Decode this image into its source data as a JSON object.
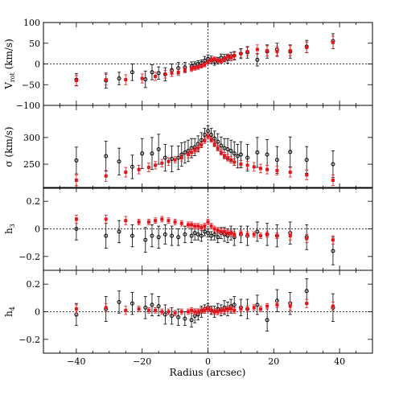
{
  "colors": {
    "black_series": "#000000",
    "red_series": "#e8141c",
    "frame": "#000000"
  },
  "chart_data": {
    "type": "scatter",
    "xlabel": "Radius (arcsec)",
    "xlim": [
      -50,
      50
    ],
    "xticks": [
      -40,
      -20,
      0,
      20,
      40
    ],
    "xtick_labels": [
      "−40",
      "−20",
      "0",
      "20",
      "40"
    ],
    "grid": false,
    "legend": "none",
    "panels": [
      {
        "ylabel": "V_rot (km/s)",
        "ylabel_main": "V",
        "ylabel_sub": "rot",
        "ylabel_rest": " (km/s)",
        "ylim": [
          -100,
          100
        ],
        "yticks": [
          -100,
          -50,
          0,
          50,
          100
        ],
        "ytick_labels": [
          "−100",
          "−50",
          "0",
          "50",
          "100"
        ],
        "zero_line": true,
        "series": [
          {
            "color": "black",
            "marker": "open-circle",
            "x": [
              -40,
              -31,
              -27,
              -23,
              -19,
              -17,
              -15,
              -13,
              -11,
              -9,
              -7,
              -5,
              -4,
              -3,
              -2,
              -1,
              0,
              1,
              2,
              3,
              4,
              5,
              6,
              7,
              8,
              10,
              12,
              15,
              18,
              21,
              25,
              30,
              38
            ],
            "y": [
              -38,
              -40,
              -35,
              -20,
              -37,
              -20,
              -22,
              -25,
              -15,
              -10,
              -8,
              -5,
              -3,
              0,
              2,
              8,
              12,
              10,
              5,
              8,
              15,
              14,
              12,
              18,
              20,
              25,
              28,
              10,
              30,
              35,
              30,
              42,
              55
            ],
            "err": [
              15,
              18,
              15,
              20,
              20,
              18,
              15,
              16,
              15,
              14,
              12,
              10,
              8,
              8,
              8,
              10,
              10,
              9,
              8,
              8,
              9,
              9,
              10,
              10,
              10,
              12,
              14,
              15,
              16,
              15,
              16,
              15,
              18
            ]
          },
          {
            "color": "red",
            "marker": "filled-square",
            "x": [
              -40,
              -31,
              -25,
              -20,
              -16,
              -13,
              -11,
              -9,
              -7,
              -5,
              -4,
              -3,
              -2,
              -1,
              0,
              1,
              2,
              3,
              4,
              5,
              6,
              7,
              8,
              10,
              12,
              15,
              18,
              21,
              25,
              30,
              38
            ],
            "y": [
              -40,
              -38,
              -38,
              -35,
              -30,
              -25,
              -22,
              -20,
              -15,
              -12,
              -10,
              -8,
              -5,
              -2,
              5,
              10,
              12,
              8,
              7,
              12,
              18,
              15,
              20,
              25,
              30,
              35,
              32,
              30,
              32,
              40,
              52
            ],
            "err": [
              12,
              13,
              12,
              11,
              10,
              9,
              8,
              7,
              6,
              6,
              5,
              5,
              5,
              5,
              5,
              5,
              5,
              5,
              5,
              5,
              6,
              7,
              8,
              9,
              10,
              11,
              12,
              12,
              12,
              13,
              15
            ]
          }
        ]
      },
      {
        "ylabel": "σ (km/s)",
        "ylabel_main": "σ (km/s)",
        "ylabel_sub": "",
        "ylabel_rest": "",
        "ylim": [
          205,
          360
        ],
        "yticks": [
          250,
          300
        ],
        "ytick_labels": [
          "250",
          "300"
        ],
        "zero_line": false,
        "series": [
          {
            "color": "black",
            "marker": "open-circle",
            "x": [
              -40,
              -31,
              -27,
              -23,
              -20,
              -17,
              -15,
              -13,
              -11,
              -9,
              -8,
              -7,
              -6,
              -5,
              -4,
              -3,
              -2,
              -1,
              0,
              1,
              2,
              3,
              4,
              5,
              6,
              7,
              8,
              9,
              10,
              12,
              15,
              18,
              21,
              25,
              30,
              38
            ],
            "y": [
              257,
              265,
              255,
              245,
              270,
              270,
              278,
              262,
              260,
              262,
              268,
              272,
              275,
              280,
              282,
              288,
              295,
              305,
              312,
              305,
              298,
              292,
              285,
              280,
              278,
              275,
              270,
              265,
              268,
              262,
              272,
              268,
              258,
              273,
              258,
              250
            ],
            "err": [
              25,
              28,
              25,
              22,
              28,
              30,
              28,
              25,
              24,
              22,
              22,
              20,
              20,
              18,
              16,
              15,
              14,
              12,
              10,
              12,
              14,
              15,
              16,
              18,
              20,
              20,
              22,
              22,
              24,
              25,
              28,
              28,
              25,
              28,
              25,
              25
            ]
          },
          {
            "color": "red",
            "marker": "filled-square",
            "x": [
              -40,
              -31,
              -25,
              -21,
              -18,
              -16,
              -14,
              -12,
              -10,
              -8,
              -6,
              -5,
              -4,
              -3,
              -2,
              -1,
              0,
              1,
              2,
              3,
              4,
              5,
              6,
              7,
              8,
              10,
              12,
              14,
              16,
              18,
              21,
              25,
              30,
              38
            ],
            "y": [
              220,
              228,
              235,
              240,
              244,
              248,
              252,
              255,
              258,
              262,
              268,
              272,
              276,
              280,
              286,
              294,
              302,
              296,
              288,
              280,
              272,
              266,
              262,
              258,
              254,
              250,
              248,
              245,
              242,
              240,
              238,
              235,
              230,
              220
            ],
            "err": [
              10,
              10,
              9,
              8,
              8,
              7,
              7,
              7,
              6,
              6,
              6,
              6,
              5,
              5,
              5,
              5,
              5,
              5,
              5,
              5,
              5,
              6,
              6,
              6,
              6,
              7,
              7,
              8,
              8,
              8,
              8,
              9,
              9,
              10
            ]
          }
        ]
      },
      {
        "ylabel": "h_3",
        "ylabel_main": "h",
        "ylabel_sub": "3",
        "ylabel_rest": "",
        "ylim": [
          -0.3,
          0.3
        ],
        "yticks": [
          -0.2,
          0,
          0.2
        ],
        "ytick_labels": [
          "−0.2",
          "0",
          "0.2"
        ],
        "zero_line": true,
        "series": [
          {
            "color": "black",
            "marker": "open-circle",
            "x": [
              -40,
              -31,
              -27,
              -23,
              -19,
              -17,
              -15,
              -13,
              -11,
              -9,
              -7,
              -5,
              -4,
              -3,
              -2,
              -1,
              0,
              1,
              2,
              3,
              4,
              5,
              6,
              7,
              8,
              10,
              12,
              15,
              18,
              21,
              25,
              30,
              38
            ],
            "y": [
              0,
              -0.05,
              -0.02,
              -0.05,
              -0.08,
              -0.05,
              -0.06,
              -0.04,
              -0.05,
              -0.06,
              -0.04,
              -0.05,
              -0.03,
              -0.04,
              -0.05,
              -0.02,
              -0.03,
              -0.05,
              -0.04,
              -0.06,
              -0.03,
              -0.04,
              -0.05,
              -0.03,
              -0.06,
              -0.04,
              -0.05,
              -0.02,
              -0.04,
              -0.05,
              -0.03,
              -0.06,
              -0.16
            ],
            "err": [
              0.08,
              0.09,
              0.08,
              0.08,
              0.09,
              0.08,
              0.08,
              0.07,
              0.07,
              0.06,
              0.06,
              0.05,
              0.05,
              0.04,
              0.04,
              0.03,
              0.03,
              0.03,
              0.04,
              0.04,
              0.04,
              0.05,
              0.05,
              0.05,
              0.06,
              0.06,
              0.07,
              0.07,
              0.08,
              0.08,
              0.08,
              0.09,
              0.1
            ]
          },
          {
            "color": "red",
            "marker": "filled-square",
            "x": [
              -40,
              -31,
              -25,
              -21,
              -18,
              -16,
              -14,
              -12,
              -10,
              -8,
              -6,
              -5,
              -4,
              -3,
              -2,
              -1,
              0,
              1,
              2,
              3,
              4,
              5,
              6,
              7,
              8,
              10,
              12,
              14,
              16,
              18,
              21,
              25,
              30,
              38
            ],
            "y": [
              0.07,
              0.07,
              0.06,
              0.05,
              0.05,
              0.06,
              0.07,
              0.06,
              0.05,
              0.04,
              0.03,
              0.03,
              0.02,
              0.02,
              0.01,
              0.02,
              0.05,
              0.02,
              0,
              -0.01,
              -0.02,
              -0.02,
              -0.03,
              -0.03,
              -0.04,
              -0.03,
              -0.04,
              -0.04,
              -0.05,
              -0.04,
              -0.05,
              -0.05,
              -0.07,
              -0.08
            ],
            "err": [
              0.03,
              0.03,
              0.03,
              0.02,
              0.02,
              0.02,
              0.02,
              0.02,
              0.02,
              0.02,
              0.02,
              0.02,
              0.02,
              0.02,
              0.02,
              0.02,
              0.02,
              0.02,
              0.02,
              0.02,
              0.02,
              0.02,
              0.02,
              0.02,
              0.02,
              0.02,
              0.02,
              0.02,
              0.02,
              0.02,
              0.02,
              0.03,
              0.03,
              0.03
            ]
          }
        ]
      },
      {
        "ylabel": "h_4",
        "ylabel_main": "h",
        "ylabel_sub": "4",
        "ylabel_rest": "",
        "ylim": [
          -0.3,
          0.3
        ],
        "yticks": [
          -0.2,
          0,
          0.2
        ],
        "ytick_labels": [
          "−0.2",
          "0",
          "0.2"
        ],
        "zero_line": true,
        "series": [
          {
            "color": "black",
            "marker": "open-circle",
            "x": [
              -40,
              -31,
              -27,
              -23,
              -19,
              -17,
              -15,
              -13,
              -11,
              -9,
              -7,
              -5,
              -4,
              -3,
              -2,
              -1,
              0,
              1,
              2,
              3,
              4,
              5,
              6,
              7,
              8,
              10,
              12,
              15,
              18,
              21,
              25,
              30,
              38
            ],
            "y": [
              -0.02,
              0.02,
              0.07,
              0.06,
              0.03,
              0.05,
              0.04,
              -0.02,
              -0.03,
              -0.04,
              -0.05,
              -0.06,
              -0.03,
              -0.02,
              0,
              0.02,
              0.03,
              0.01,
              0,
              0.02,
              0.01,
              0.03,
              0.02,
              0.04,
              0.05,
              0.03,
              0.02,
              0.05,
              -0.06,
              0.08,
              0.06,
              0.15,
              0.03
            ],
            "err": [
              0.08,
              0.09,
              0.08,
              0.08,
              0.08,
              0.08,
              0.07,
              0.07,
              0.06,
              0.06,
              0.05,
              0.05,
              0.05,
              0.04,
              0.04,
              0.03,
              0.03,
              0.03,
              0.04,
              0.04,
              0.04,
              0.05,
              0.05,
              0.05,
              0.06,
              0.06,
              0.07,
              0.07,
              0.08,
              0.08,
              0.08,
              0.09,
              0.1
            ]
          },
          {
            "color": "red",
            "marker": "filled-square",
            "x": [
              -40,
              -31,
              -25,
              -21,
              -18,
              -16,
              -14,
              -12,
              -10,
              -8,
              -6,
              -5,
              -4,
              -3,
              -2,
              -1,
              0,
              1,
              2,
              3,
              4,
              5,
              6,
              7,
              8,
              10,
              12,
              14,
              16,
              18,
              21,
              25,
              30,
              38
            ],
            "y": [
              0.02,
              0.03,
              0.01,
              0.02,
              0.01,
              0.01,
              0,
              0,
              -0.01,
              0,
              0,
              0.01,
              0,
              0,
              0.01,
              0.01,
              0.02,
              0.01,
              0,
              0,
              0.01,
              0.01,
              0.02,
              0.02,
              0.01,
              0.02,
              0.02,
              0.03,
              0.02,
              0.04,
              0.05,
              0.04,
              0.06,
              0.04
            ],
            "err": [
              0.03,
              0.03,
              0.03,
              0.02,
              0.02,
              0.02,
              0.02,
              0.02,
              0.02,
              0.02,
              0.02,
              0.02,
              0.02,
              0.02,
              0.02,
              0.02,
              0.02,
              0.02,
              0.02,
              0.02,
              0.02,
              0.02,
              0.02,
              0.02,
              0.02,
              0.02,
              0.02,
              0.02,
              0.02,
              0.02,
              0.02,
              0.03,
              0.03,
              0.03
            ]
          }
        ]
      }
    ]
  }
}
